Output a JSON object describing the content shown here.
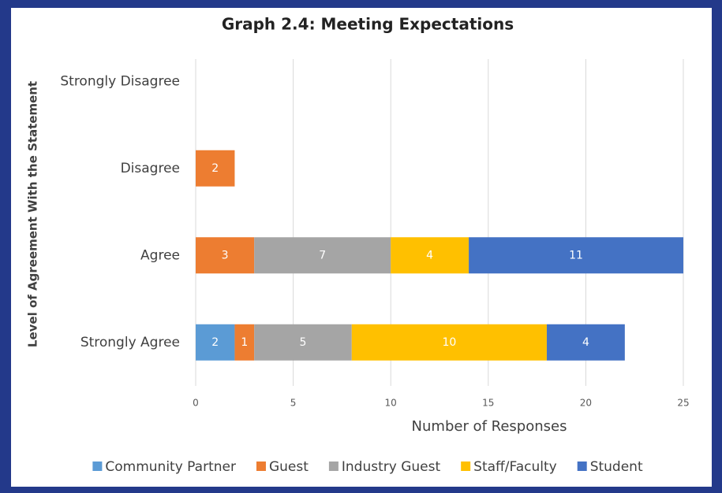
{
  "chart_data": {
    "type": "hbar_stacked",
    "title": "Graph 2.4: Meeting Expectations",
    "x_label": "Number of Responses",
    "y_label": "Level of Agreement With the Statement",
    "categories": [
      "Strongly Disagree",
      "Disagree",
      "Agree",
      "Strongly Agree"
    ],
    "series": [
      {
        "name": "Community Partner",
        "color": "#5b9bd5",
        "values": [
          0,
          0,
          0,
          2
        ]
      },
      {
        "name": "Guest",
        "color": "#ed7d31",
        "values": [
          0,
          2,
          3,
          1
        ]
      },
      {
        "name": "Industry Guest",
        "color": "#a5a5a5",
        "values": [
          0,
          0,
          7,
          5
        ]
      },
      {
        "name": "Staff/Faculty",
        "color": "#ffc000",
        "values": [
          0,
          0,
          4,
          10
        ]
      },
      {
        "name": "Student",
        "color": "#4472c4",
        "values": [
          0,
          0,
          11,
          4
        ]
      }
    ],
    "xlim": [
      0,
      25
    ],
    "xticks": [
      0,
      5,
      10,
      15,
      20,
      25
    ],
    "grid": true,
    "legend": "bottom"
  }
}
